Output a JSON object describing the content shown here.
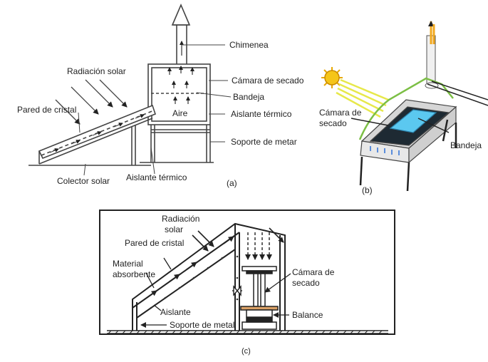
{
  "panel_a": {
    "caption": "(a)",
    "labels": {
      "chimenea": "Chimenea",
      "radiacion": "Radiación solar",
      "camara": "Cámara de secado",
      "bandeja": "Bandeja",
      "pared": "Pared de cristal",
      "aire": "Aire",
      "aislante1": "Aislante térmico",
      "soporte": "Soporte de metar",
      "colector": "Colector solar",
      "aislante2": "Aislante térmico"
    }
  },
  "panel_b": {
    "caption": "(b)",
    "labels": {
      "camara_l1": "Cámara de",
      "camara_l2": "secado",
      "bandeja": "Bandeja"
    },
    "colors": {
      "sun": "#f5c518",
      "tray": "#5bc8f0",
      "chimney_arrow": "#f2a81d",
      "frame": "#7cbf45"
    }
  },
  "panel_c": {
    "caption": "(c)",
    "labels": {
      "radiacion_l1": "Radiación",
      "radiacion_l2": "solar",
      "pared": "Pared de cristal",
      "material_l1": "Material",
      "material_l2": "absorbente",
      "aislante": "Aislante",
      "soporte": "Soporte de metal",
      "camara_l1": "Cámara de",
      "camara_l2": "secado",
      "balance": "Balance"
    },
    "colors": {
      "wood": "#d9a066"
    }
  }
}
